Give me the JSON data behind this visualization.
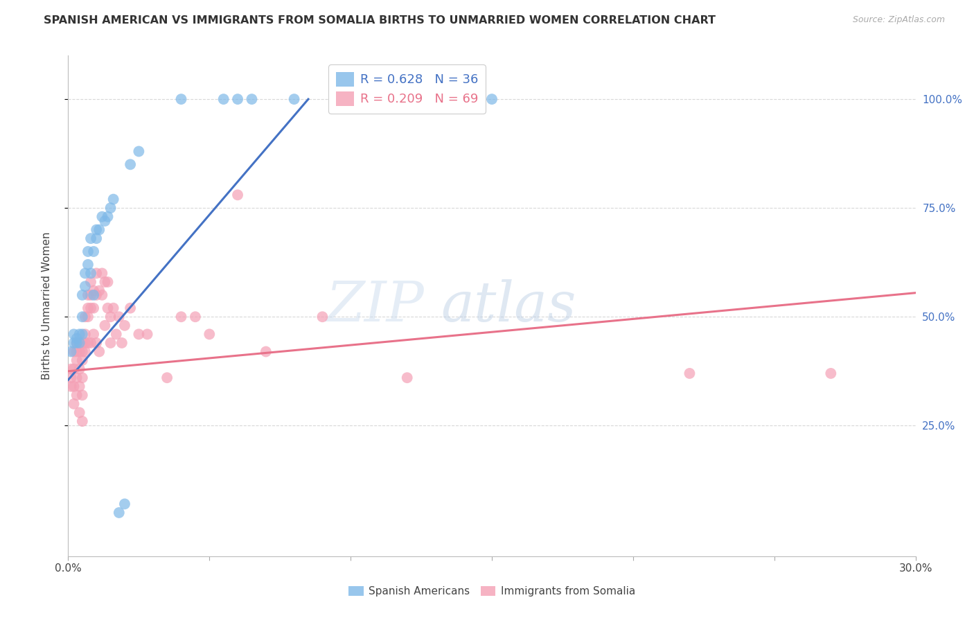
{
  "title": "SPANISH AMERICAN VS IMMIGRANTS FROM SOMALIA BIRTHS TO UNMARRIED WOMEN CORRELATION CHART",
  "source": "Source: ZipAtlas.com",
  "ylabel": "Births to Unmarried Women",
  "ytick_labels": [
    "25.0%",
    "50.0%",
    "75.0%",
    "100.0%"
  ],
  "ytick_values": [
    0.25,
    0.5,
    0.75,
    1.0
  ],
  "legend_blue_label": "Spanish Americans",
  "legend_pink_label": "Immigrants from Somalia",
  "legend_R_blue": "R = 0.628",
  "legend_N_blue": "N = 36",
  "legend_R_pink": "R = 0.209",
  "legend_N_pink": "N = 69",
  "blue_color": "#7eb8e8",
  "pink_color": "#f4a0b5",
  "blue_line_color": "#4472c4",
  "pink_line_color": "#e8728a",
  "watermark_zip": "ZIP",
  "watermark_atlas": "atlas",
  "blue_scatter_x": [
    0.001,
    0.002,
    0.002,
    0.003,
    0.003,
    0.004,
    0.004,
    0.005,
    0.005,
    0.005,
    0.006,
    0.006,
    0.007,
    0.007,
    0.008,
    0.008,
    0.009,
    0.009,
    0.01,
    0.01,
    0.011,
    0.012,
    0.013,
    0.014,
    0.015,
    0.016,
    0.018,
    0.02,
    0.022,
    0.025,
    0.04,
    0.055,
    0.06,
    0.065,
    0.08,
    0.15
  ],
  "blue_scatter_y": [
    0.42,
    0.44,
    0.46,
    0.44,
    0.45,
    0.44,
    0.46,
    0.46,
    0.5,
    0.55,
    0.57,
    0.6,
    0.62,
    0.65,
    0.6,
    0.68,
    0.55,
    0.65,
    0.68,
    0.7,
    0.7,
    0.73,
    0.72,
    0.73,
    0.75,
    0.77,
    0.05,
    0.07,
    0.85,
    0.88,
    1.0,
    1.0,
    1.0,
    1.0,
    1.0,
    1.0
  ],
  "pink_scatter_x": [
    0.001,
    0.001,
    0.001,
    0.002,
    0.002,
    0.002,
    0.002,
    0.003,
    0.003,
    0.003,
    0.003,
    0.003,
    0.004,
    0.004,
    0.004,
    0.004,
    0.004,
    0.005,
    0.005,
    0.005,
    0.005,
    0.005,
    0.005,
    0.006,
    0.006,
    0.006,
    0.006,
    0.007,
    0.007,
    0.007,
    0.007,
    0.008,
    0.008,
    0.008,
    0.008,
    0.009,
    0.009,
    0.009,
    0.01,
    0.01,
    0.01,
    0.011,
    0.011,
    0.012,
    0.012,
    0.013,
    0.013,
    0.014,
    0.014,
    0.015,
    0.015,
    0.016,
    0.017,
    0.018,
    0.019,
    0.02,
    0.022,
    0.025,
    0.028,
    0.035,
    0.04,
    0.045,
    0.05,
    0.06,
    0.07,
    0.09,
    0.12,
    0.22,
    0.27
  ],
  "pink_scatter_y": [
    0.38,
    0.36,
    0.34,
    0.42,
    0.38,
    0.34,
    0.3,
    0.44,
    0.42,
    0.4,
    0.36,
    0.32,
    0.44,
    0.42,
    0.38,
    0.34,
    0.28,
    0.44,
    0.42,
    0.4,
    0.36,
    0.32,
    0.26,
    0.44,
    0.5,
    0.46,
    0.42,
    0.55,
    0.52,
    0.5,
    0.44,
    0.58,
    0.55,
    0.52,
    0.44,
    0.56,
    0.52,
    0.46,
    0.6,
    0.55,
    0.44,
    0.56,
    0.42,
    0.6,
    0.55,
    0.58,
    0.48,
    0.58,
    0.52,
    0.5,
    0.44,
    0.52,
    0.46,
    0.5,
    0.44,
    0.48,
    0.52,
    0.46,
    0.46,
    0.36,
    0.5,
    0.5,
    0.46,
    0.78,
    0.42,
    0.5,
    0.36,
    0.37,
    0.37
  ],
  "xlim": [
    0.0,
    0.3
  ],
  "ylim": [
    -0.05,
    1.1
  ],
  "bg_color": "#ffffff",
  "grid_color": "#d8d8d8",
  "blue_line_x0": 0.0,
  "blue_line_y0": 0.355,
  "blue_line_x1": 0.085,
  "blue_line_y1": 1.0,
  "pink_line_x0": 0.0,
  "pink_line_y0": 0.375,
  "pink_line_x1": 0.3,
  "pink_line_y1": 0.555
}
